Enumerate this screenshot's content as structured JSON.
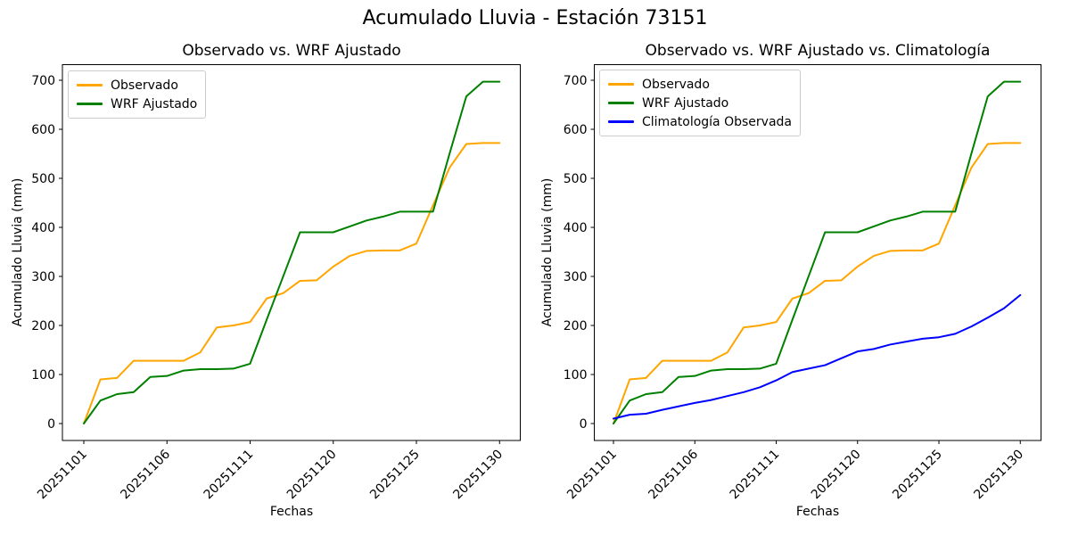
{
  "figure": {
    "title": "Acumulado Lluvia - Estación 73151",
    "background_color": "#ffffff",
    "text_color": "#000000"
  },
  "chart_data": [
    {
      "type": "line",
      "title": "Observado vs. WRF Ajustado",
      "xlabel": "Fechas",
      "ylabel": "Acumulado Lluvia (mm)",
      "x_point_count": 26,
      "x_tick_positions": [
        0,
        5,
        10,
        15,
        20,
        25
      ],
      "x_tick_labels": [
        "20251101",
        "20251106",
        "20251111",
        "20251120",
        "20251125",
        "20251130"
      ],
      "x_tick_rotation_deg": 45,
      "y_ticks": [
        0,
        100,
        200,
        300,
        400,
        500,
        600,
        700
      ],
      "ylim": [
        -35,
        732
      ],
      "grid": false,
      "legend_position": "upper left",
      "series": [
        {
          "name": "Observado",
          "color": "#ffa500",
          "values": [
            0,
            90,
            93,
            128,
            128,
            128,
            128,
            145,
            196,
            200,
            207,
            255,
            266,
            291,
            292,
            320,
            342,
            352,
            353,
            353,
            367,
            445,
            522,
            570,
            572,
            572
          ]
        },
        {
          "name": "WRF Ajustado",
          "color": "#008000",
          "values": [
            0,
            47,
            60,
            64,
            95,
            97,
            108,
            111,
            111,
            112,
            122,
            212,
            301,
            390,
            390,
            390,
            402,
            414,
            422,
            432,
            432,
            432,
            551,
            667,
            697,
            697
          ]
        }
      ]
    },
    {
      "type": "line",
      "title": "Observado vs. WRF Ajustado vs. Climatología",
      "xlabel": "Fechas",
      "ylabel": "Acumulado Lluvia (mm)",
      "x_point_count": 26,
      "x_tick_positions": [
        0,
        5,
        10,
        15,
        20,
        25
      ],
      "x_tick_labels": [
        "20251101",
        "20251106",
        "20251111",
        "20251120",
        "20251125",
        "20251130"
      ],
      "x_tick_rotation_deg": 45,
      "y_ticks": [
        0,
        100,
        200,
        300,
        400,
        500,
        600,
        700
      ],
      "ylim": [
        -35,
        732
      ],
      "grid": false,
      "legend_position": "upper left",
      "series": [
        {
          "name": "Observado",
          "color": "#ffa500",
          "values": [
            0,
            90,
            93,
            128,
            128,
            128,
            128,
            145,
            196,
            200,
            207,
            255,
            266,
            291,
            292,
            320,
            342,
            352,
            353,
            353,
            367,
            445,
            522,
            570,
            572,
            572
          ]
        },
        {
          "name": "WRF Ajustado",
          "color": "#008000",
          "values": [
            0,
            47,
            60,
            64,
            95,
            97,
            108,
            111,
            111,
            112,
            122,
            212,
            301,
            390,
            390,
            390,
            402,
            414,
            422,
            432,
            432,
            432,
            551,
            667,
            697,
            697
          ]
        },
        {
          "name": "Climatología Observada",
          "color": "#0000ff",
          "values": [
            10,
            18,
            20,
            28,
            35,
            42,
            48,
            56,
            64,
            74,
            88,
            105,
            112,
            119,
            133,
            147,
            152,
            161,
            167,
            173,
            176,
            183,
            198,
            216,
            235,
            262
          ]
        }
      ]
    }
  ]
}
